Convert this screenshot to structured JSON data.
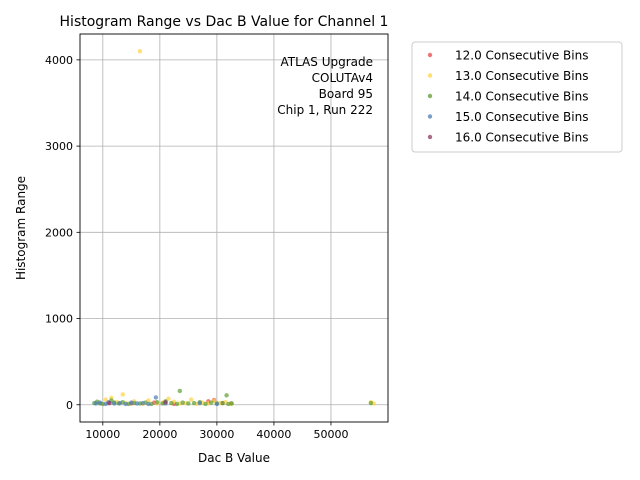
{
  "chart_data": {
    "type": "scatter",
    "title": "Histogram Range vs Dac B Value for Channel 1",
    "xlabel": "Dac B Value",
    "ylabel": "Histogram Range",
    "xlim": [
      6000,
      60000
    ],
    "ylim": [
      -200,
      4300
    ],
    "xticks": [
      10000,
      20000,
      30000,
      40000,
      50000
    ],
    "yticks": [
      0,
      1000,
      2000,
      3000,
      4000
    ],
    "grid": true,
    "legend_position": "outside-right",
    "annotation": [
      "ATLAS Upgrade",
      "COLUTAv4",
      "Board 95",
      "Chip 1, Run 222"
    ],
    "series": [
      {
        "name": "12.0 Consecutive Bins",
        "color": "#e8474a",
        "points": [
          [
            11000,
            20
          ],
          [
            15000,
            15
          ],
          [
            19000,
            25
          ],
          [
            22500,
            10
          ],
          [
            28500,
            40
          ],
          [
            29500,
            55
          ],
          [
            31000,
            20
          ],
          [
            32500,
            15
          ]
        ]
      },
      {
        "name": "13.0 Consecutive Bins",
        "color": "#ffd23f",
        "points": [
          [
            16500,
            4100
          ],
          [
            13500,
            120
          ],
          [
            10500,
            60
          ],
          [
            11500,
            80
          ],
          [
            12500,
            30
          ],
          [
            14000,
            20
          ],
          [
            15500,
            40
          ],
          [
            17000,
            10
          ],
          [
            18000,
            50
          ],
          [
            19500,
            15
          ],
          [
            20500,
            25
          ],
          [
            21500,
            70
          ],
          [
            22500,
            35
          ],
          [
            23500,
            15
          ],
          [
            24500,
            20
          ],
          [
            25500,
            60
          ],
          [
            26500,
            10
          ],
          [
            27500,
            25
          ],
          [
            28500,
            15
          ],
          [
            29500,
            45
          ],
          [
            30500,
            20
          ],
          [
            31500,
            30
          ],
          [
            32500,
            10
          ],
          [
            57000,
            30
          ],
          [
            57500,
            15
          ]
        ]
      },
      {
        "name": "14.0 Consecutive Bins",
        "color": "#5a9e2f",
        "points": [
          [
            23500,
            160
          ],
          [
            31700,
            110
          ],
          [
            8500,
            20
          ],
          [
            9000,
            35
          ],
          [
            9500,
            15
          ],
          [
            10000,
            10
          ],
          [
            11500,
            50
          ],
          [
            12000,
            25
          ],
          [
            12800,
            15
          ],
          [
            13500,
            30
          ],
          [
            14500,
            10
          ],
          [
            15500,
            20
          ],
          [
            16500,
            15
          ],
          [
            17500,
            25
          ],
          [
            18500,
            10
          ],
          [
            19500,
            30
          ],
          [
            20500,
            15
          ],
          [
            21000,
            40
          ],
          [
            22000,
            20
          ],
          [
            23000,
            10
          ],
          [
            24000,
            25
          ],
          [
            25000,
            15
          ],
          [
            26000,
            20
          ],
          [
            27000,
            30
          ],
          [
            28000,
            10
          ],
          [
            29000,
            25
          ],
          [
            30000,
            15
          ],
          [
            31000,
            20
          ],
          [
            32000,
            10
          ],
          [
            32600,
            15
          ],
          [
            57000,
            20
          ]
        ]
      },
      {
        "name": "15.0 Consecutive Bins",
        "color": "#4b7eb8",
        "points": [
          [
            19300,
            85
          ],
          [
            8800,
            15
          ],
          [
            9500,
            25
          ],
          [
            10500,
            10
          ],
          [
            11000,
            30
          ],
          [
            12000,
            15
          ],
          [
            13000,
            20
          ],
          [
            14000,
            10
          ],
          [
            15000,
            25
          ],
          [
            16000,
            15
          ],
          [
            17000,
            20
          ],
          [
            18000,
            10
          ],
          [
            21000,
            15
          ],
          [
            27000,
            20
          ],
          [
            30000,
            10
          ]
        ]
      },
      {
        "name": "16.0 Consecutive Bins",
        "color": "#8b3a62",
        "points": [
          [
            11200,
            20
          ],
          [
            21000,
            30
          ]
        ]
      }
    ]
  }
}
